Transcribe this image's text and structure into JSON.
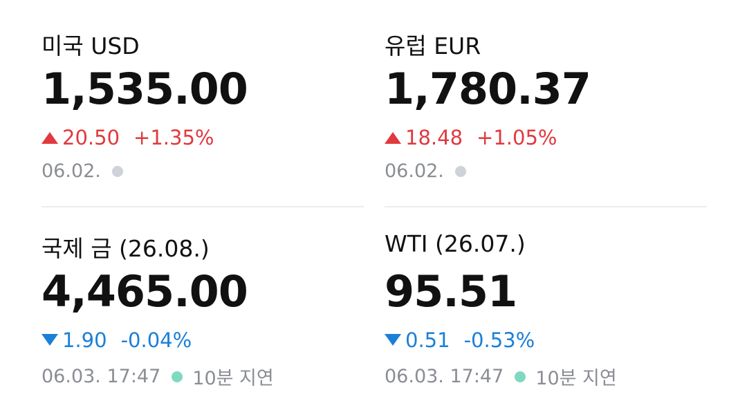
{
  "cards": [
    {
      "title": "미국 USD",
      "price": "1,535.00",
      "change": "20.50",
      "change_pct": "+1.35%",
      "date": "06.02.",
      "arrow": "up",
      "color": "#e0393e",
      "dot_color": "#cfd2d8"
    },
    {
      "title": "유럽 EUR",
      "price": "1,780.37",
      "change": "18.48",
      "change_pct": "+1.05%",
      "date": "06.02.",
      "arrow": "up",
      "color": "#e0393e",
      "dot_color": "#cfd2d8"
    },
    {
      "title": "국제 금 (26.08.)",
      "price": "4,465.00",
      "change": "1.90",
      "change_pct": "-0.04%",
      "date": "06.03. 17:47",
      "delay": "10분 지연",
      "arrow": "down",
      "color": "#1a7fd8",
      "dot_color": "#7fd9c0"
    },
    {
      "title": "WTI (26.07.)",
      "price": "95.51",
      "change": "0.51",
      "change_pct": "-0.53%",
      "date": "06.03. 17:47",
      "delay": "10분 지연",
      "arrow": "down",
      "color": "#1a7fd8",
      "dot_color": "#7fd9c0"
    }
  ]
}
